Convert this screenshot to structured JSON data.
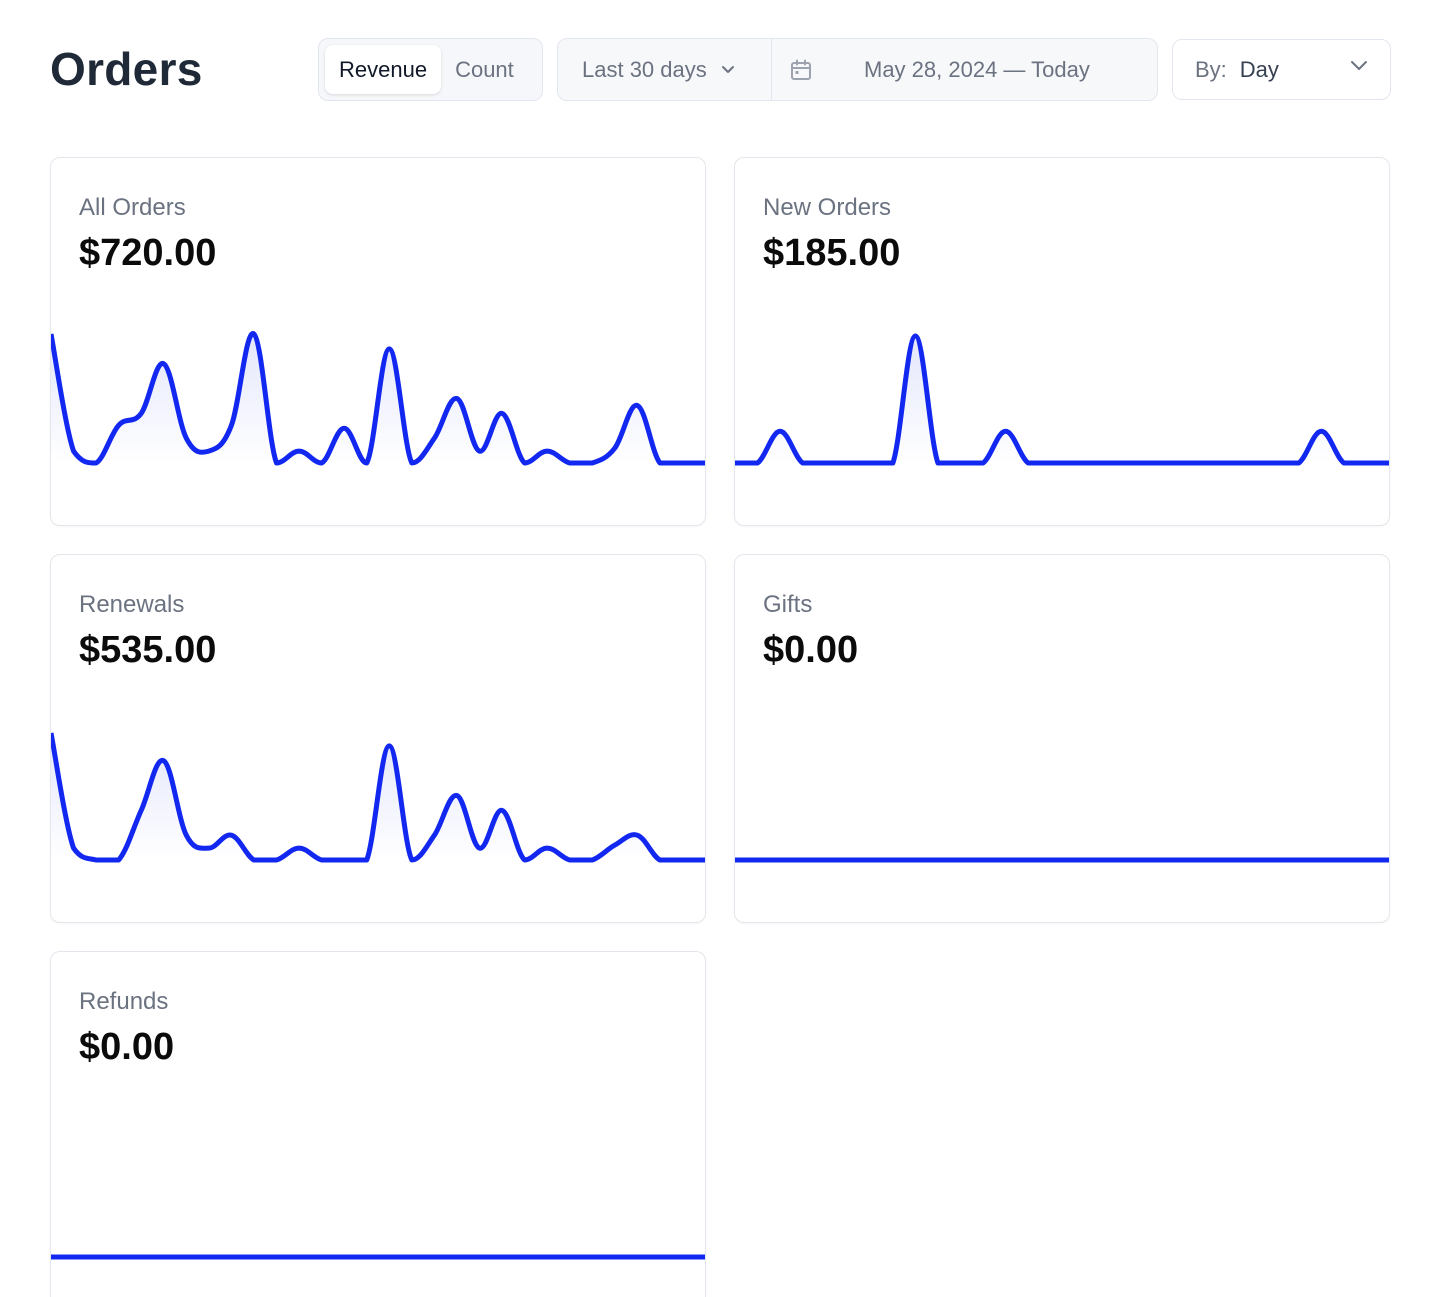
{
  "page": {
    "title": "Orders"
  },
  "metric_toggle": {
    "options": [
      "Revenue",
      "Count"
    ],
    "selected": "Revenue"
  },
  "date_range": {
    "preset": "Last 30 days",
    "dates": "May 28, 2024 — Today"
  },
  "group_by": {
    "label": "By:",
    "value": "Day"
  },
  "colors": {
    "line": "#1228f0",
    "fill_top": "#e3e6fb",
    "fill_bottom": "#ffffff"
  },
  "icons": {
    "dropdown": "chevron-down-icon",
    "date": "calendar-icon"
  },
  "cards": [
    {
      "label": "All Orders",
      "value": "$720.00",
      "chart_data": {
        "type": "area",
        "values": [
          130,
          12,
          0,
          38,
          50,
          100,
          25,
          12,
          38,
          130,
          0,
          12,
          0,
          35,
          0,
          115,
          0,
          25,
          65,
          12,
          50,
          0,
          12,
          0,
          0,
          15,
          58,
          0,
          0,
          0
        ],
        "ylim": [
          0,
          130
        ]
      }
    },
    {
      "label": "New Orders",
      "value": "$185.00",
      "chart_data": {
        "type": "area",
        "values": [
          0,
          0,
          32,
          0,
          0,
          0,
          0,
          0,
          128,
          0,
          0,
          0,
          32,
          0,
          0,
          0,
          0,
          0,
          0,
          0,
          0,
          0,
          0,
          0,
          0,
          0,
          32,
          0,
          0,
          0
        ],
        "ylim": [
          0,
          130
        ]
      }
    },
    {
      "label": "Renewals",
      "value": "$535.00",
      "chart_data": {
        "type": "area",
        "values": [
          128,
          12,
          0,
          0,
          50,
          100,
          25,
          12,
          25,
          0,
          0,
          12,
          0,
          0,
          0,
          115,
          0,
          25,
          65,
          12,
          50,
          0,
          12,
          0,
          0,
          15,
          25,
          0,
          0,
          0
        ],
        "ylim": [
          0,
          130
        ]
      }
    },
    {
      "label": "Gifts",
      "value": "$0.00",
      "chart_data": {
        "type": "area",
        "values": [
          0,
          0,
          0,
          0,
          0,
          0,
          0,
          0,
          0,
          0,
          0,
          0,
          0,
          0,
          0,
          0,
          0,
          0,
          0,
          0,
          0,
          0,
          0,
          0,
          0,
          0,
          0,
          0,
          0,
          0
        ],
        "ylim": [
          0,
          130
        ]
      }
    },
    {
      "label": "Refunds",
      "value": "$0.00",
      "chart_data": {
        "type": "area",
        "values": [
          0,
          0,
          0,
          0,
          0,
          0,
          0,
          0,
          0,
          0,
          0,
          0,
          0,
          0,
          0,
          0,
          0,
          0,
          0,
          0,
          0,
          0,
          0,
          0,
          0,
          0,
          0,
          0,
          0,
          0
        ],
        "ylim": [
          0,
          130
        ]
      }
    }
  ]
}
